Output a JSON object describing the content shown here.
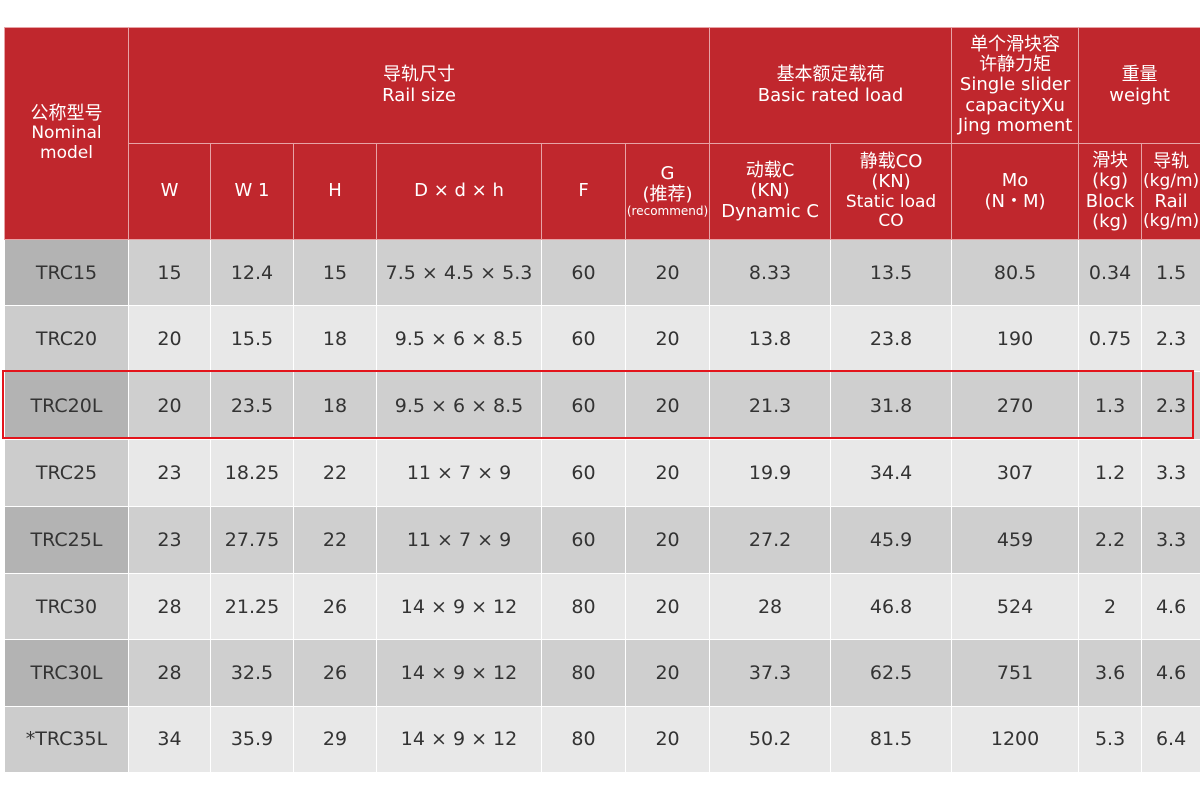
{
  "header": {
    "model": {
      "cn": "公称型号",
      "en1": "Nominal",
      "en2": "model"
    },
    "rail_size": {
      "cn": "导轨尺寸",
      "en": "Rail size"
    },
    "basic_load": {
      "cn": "基本额定载荷",
      "en": "Basic rated load"
    },
    "moment": {
      "cn1": "单个滑块容",
      "cn2": "许静力矩",
      "en1": "Single slider",
      "en2": "capacityXu",
      "en3": "Jing moment"
    },
    "weight": {
      "cn": "重量",
      "en": "weight"
    },
    "cols": {
      "w": "W",
      "w1": "W 1",
      "h": "H",
      "dxdxh": "D × d × h",
      "f": "F",
      "g": {
        "l1": "G",
        "l2": "(推荐)",
        "l3": "(recommend)"
      },
      "dynamic": {
        "l1": "动载C",
        "l2": "(KN)",
        "l3": "Dynamic C"
      },
      "static": {
        "l1": "静载CO",
        "l2": "(KN)",
        "l3": "Static load CO"
      },
      "mo": {
        "l1": "Mo",
        "l2": "(N・M)"
      },
      "block": {
        "l1": "滑块",
        "l2": "(kg)",
        "l3": "Block",
        "l4": "(kg)"
      },
      "rail": {
        "l1": "导轨",
        "l2": "(kg/m)",
        "l3": "Rail",
        "l4": "(kg/m)"
      }
    }
  },
  "rows": [
    [
      "TRC15",
      "15",
      "12.4",
      "15",
      "7.5 × 4.5 × 5.3",
      "60",
      "20",
      "8.33",
      "13.5",
      "80.5",
      "0.34",
      "1.5"
    ],
    [
      "TRC20",
      "20",
      "15.5",
      "18",
      "9.5 × 6 × 8.5",
      "60",
      "20",
      "13.8",
      "23.8",
      "190",
      "0.75",
      "2.3"
    ],
    [
      "TRC20L",
      "20",
      "23.5",
      "18",
      "9.5 × 6 × 8.5",
      "60",
      "20",
      "21.3",
      "31.8",
      "270",
      "1.3",
      "2.3"
    ],
    [
      "TRC25",
      "23",
      "18.25",
      "22",
      "11 × 7 × 9",
      "60",
      "20",
      "19.9",
      "34.4",
      "307",
      "1.2",
      "3.3"
    ],
    [
      "TRC25L",
      "23",
      "27.75",
      "22",
      "11 × 7 × 9",
      "60",
      "20",
      "27.2",
      "45.9",
      "459",
      "2.2",
      "3.3"
    ],
    [
      "TRC30",
      "28",
      "21.25",
      "26",
      "14 × 9 × 12",
      "80",
      "20",
      "28",
      "46.8",
      "524",
      "2",
      "4.6"
    ],
    [
      "TRC30L",
      "28",
      "32.5",
      "26",
      "14 × 9 × 12",
      "80",
      "20",
      "37.3",
      "62.5",
      "751",
      "3.6",
      "4.6"
    ],
    [
      "*TRC35L",
      "34",
      "35.9",
      "29",
      "14 × 9 × 12",
      "80",
      "20",
      "50.2",
      "81.5",
      "1200",
      "5.3",
      "6.4"
    ]
  ],
  "highlighted_row": 2,
  "colors": {
    "header_bg": "#c0272d",
    "highlight": "#e3151c"
  }
}
